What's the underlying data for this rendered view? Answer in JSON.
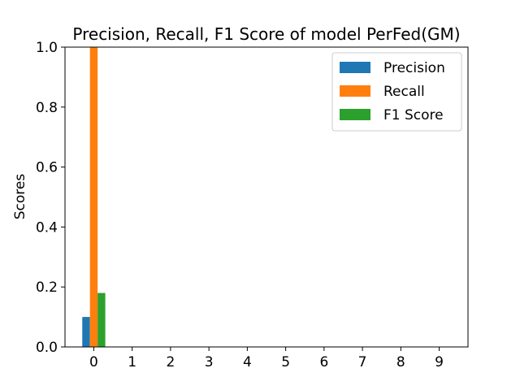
{
  "chart_data": {
    "type": "bar",
    "title": "Precision, Recall, F1 Score of model PerFed(GM)",
    "xlabel": "",
    "ylabel": "Scores",
    "categories": [
      "0",
      "1",
      "2",
      "3",
      "4",
      "5",
      "6",
      "7",
      "8",
      "9"
    ],
    "series": [
      {
        "name": "Precision",
        "color": "#1f77b4",
        "values": [
          0.1,
          0,
          0,
          0,
          0,
          0,
          0,
          0,
          0,
          0
        ]
      },
      {
        "name": "Recall",
        "color": "#ff7f0e",
        "values": [
          1.0,
          0,
          0,
          0,
          0,
          0,
          0,
          0,
          0,
          0
        ]
      },
      {
        "name": "F1 Score",
        "color": "#2ca02c",
        "values": [
          0.18,
          0,
          0,
          0,
          0,
          0,
          0,
          0,
          0,
          0
        ]
      }
    ],
    "ylim": [
      0,
      1.0
    ],
    "yticks": [
      "0.0",
      "0.2",
      "0.4",
      "0.6",
      "0.8",
      "1.0"
    ],
    "grid": false,
    "legend_position": "top-right"
  }
}
